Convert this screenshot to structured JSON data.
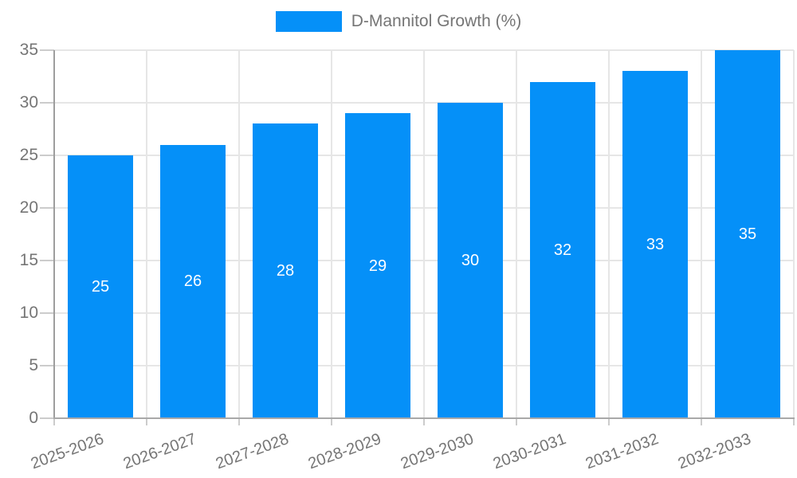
{
  "legend": {
    "label": "D-Mannitol Growth (%)",
    "swatch_color": "#0590F8"
  },
  "chart_data": {
    "type": "bar",
    "title": "D-Mannitol Growth (%)",
    "categories": [
      "2025-2026",
      "2026-2027",
      "2027-2028",
      "2028-2029",
      "2029-2030",
      "2030-2031",
      "2031-2032",
      "2032-2033"
    ],
    "values": [
      25,
      26,
      28,
      29,
      30,
      32,
      33,
      35
    ],
    "series": [
      {
        "name": "D-Mannitol Growth (%)",
        "values": [
          25,
          26,
          28,
          29,
          30,
          32,
          33,
          35
        ]
      }
    ],
    "xlabel": "",
    "ylabel": "",
    "ylim": [
      0,
      35
    ],
    "yticks": [
      0,
      5,
      10,
      15,
      20,
      25,
      30,
      35
    ],
    "grid": true,
    "legend_position": "top",
    "bar_color": "#0590F8",
    "value_label_color": "#ffffff",
    "axis_label_color": "#757575",
    "x_label_rotation_deg": -20
  }
}
